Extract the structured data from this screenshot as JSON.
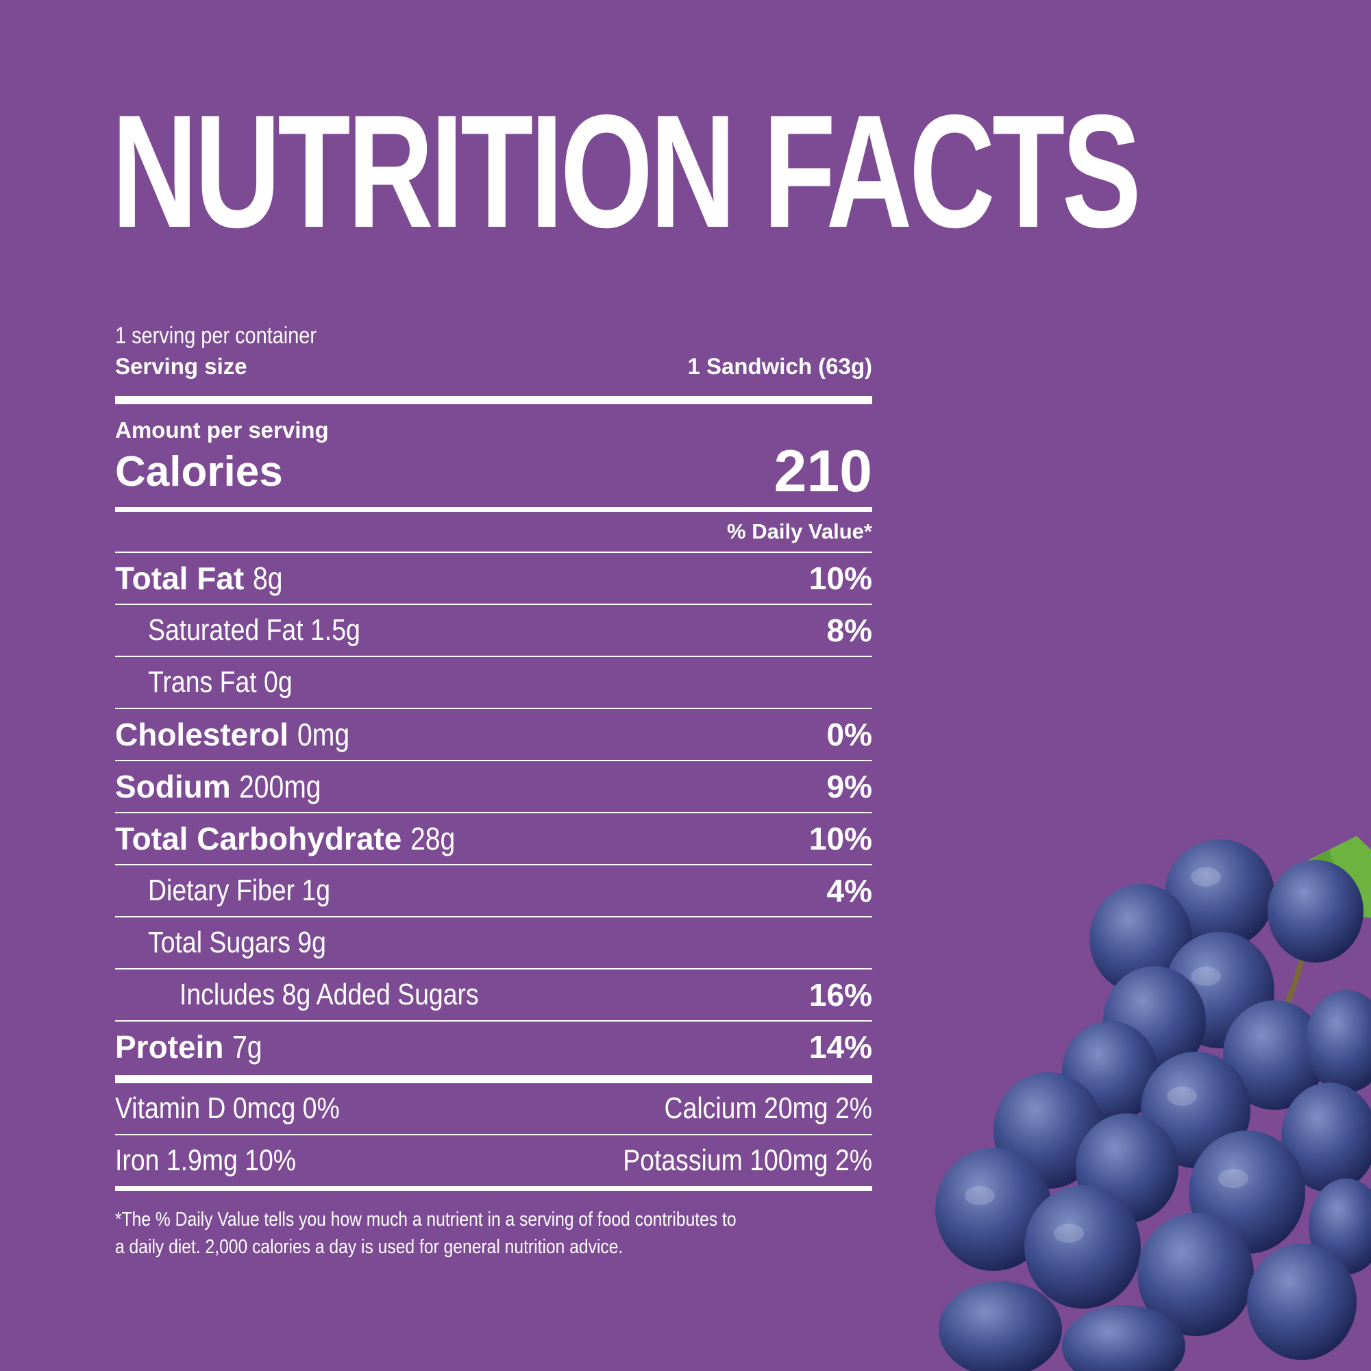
{
  "title": "NUTRITION FACTS",
  "servings_per_container": "1 serving per container",
  "serving_size_label": "Serving size",
  "serving_size_value": "1 Sandwich (63g)",
  "amount_per_serving": "Amount per serving",
  "calories_label": "Calories",
  "calories_value": "210",
  "daily_value_header": "% Daily Value*",
  "nutrients": [
    {
      "name": "Total Fat",
      "amount": "8g",
      "dv": "10%"
    },
    {
      "name": "Saturated Fat 1.5g",
      "dv": "8%"
    },
    {
      "name": "Trans Fat 0g",
      "dv": ""
    },
    {
      "name": "Cholesterol",
      "amount": "0mg",
      "dv": "0%"
    },
    {
      "name": "Sodium",
      "amount": "200mg",
      "dv": "9%"
    },
    {
      "name": "Total Carbohydrate",
      "amount": "28g",
      "dv": "10%"
    },
    {
      "name": "Dietary Fiber 1g",
      "dv": "4%"
    },
    {
      "name": "Total Sugars 9g",
      "dv": ""
    },
    {
      "name": "Includes 8g Added Sugars",
      "dv": "16%"
    },
    {
      "name": "Protein",
      "amount": "7g",
      "dv": "14%"
    }
  ],
  "micros": [
    {
      "left": "Vitamin D 0mcg 0%",
      "right": "Calcium 20mg 2%"
    },
    {
      "left": "Iron 1.9mg 10%",
      "right": "Potassium 100mg 2%"
    }
  ],
  "footnote_line1": "*The % Daily Value tells you how much a nutrient in a serving of food contributes to",
  "footnote_line2": "a daily diet. 2,000 calories a day is used for general nutrition advice.",
  "colors": {
    "background": "#7d4a94",
    "text": "#ffffff",
    "grape": "#3b4a86",
    "leaf": "#6db33f"
  }
}
